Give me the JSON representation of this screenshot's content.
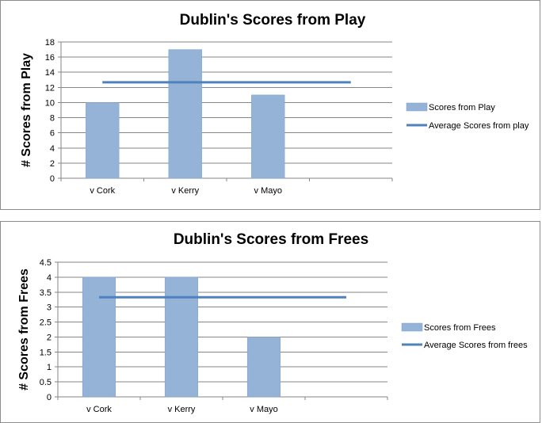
{
  "chart_data": [
    {
      "type": "bar",
      "title": "Dublin's Scores from Play",
      "xlabel": "",
      "ylabel": "# Scores from Play",
      "categories": [
        "v Cork",
        "v Kerry",
        "v Mayo",
        ""
      ],
      "yticks": [
        "0",
        "2",
        "4",
        "6",
        "8",
        "10",
        "12",
        "14",
        "16",
        "18"
      ],
      "ylim": [
        0,
        18
      ],
      "series": [
        {
          "name": "Scores from Play",
          "kind": "bar",
          "values": [
            10,
            17,
            11,
            null
          ]
        },
        {
          "name": "Average Scores from play",
          "kind": "line",
          "values": [
            12.67,
            12.67,
            12.67,
            12.67
          ]
        }
      ],
      "grid": true,
      "legend_position": "right",
      "colors": {
        "bar": "#95b3d7",
        "bar_edge": "#7f9fcb",
        "line": "#4f81bd",
        "grid": "#868686"
      }
    },
    {
      "type": "bar",
      "title": "Dublin's Scores from Frees",
      "xlabel": "",
      "ylabel": "# Scores from Frees",
      "categories": [
        "v Cork",
        "v Kerry",
        "v Mayo",
        ""
      ],
      "yticks": [
        "0",
        "0.5",
        "1",
        "1.5",
        "2",
        "2.5",
        "3",
        "3.5",
        "4",
        "4.5"
      ],
      "ylim": [
        0,
        4.5
      ],
      "series": [
        {
          "name": "Scores from Frees",
          "kind": "bar",
          "values": [
            4,
            4,
            2,
            null
          ]
        },
        {
          "name": "Average Scores from frees",
          "kind": "line",
          "values": [
            3.33,
            3.33,
            3.33,
            3.33
          ]
        }
      ],
      "grid": true,
      "legend_position": "right",
      "colors": {
        "bar": "#95b3d7",
        "bar_edge": "#7f9fcb",
        "line": "#4f81bd",
        "grid": "#868686"
      }
    }
  ]
}
